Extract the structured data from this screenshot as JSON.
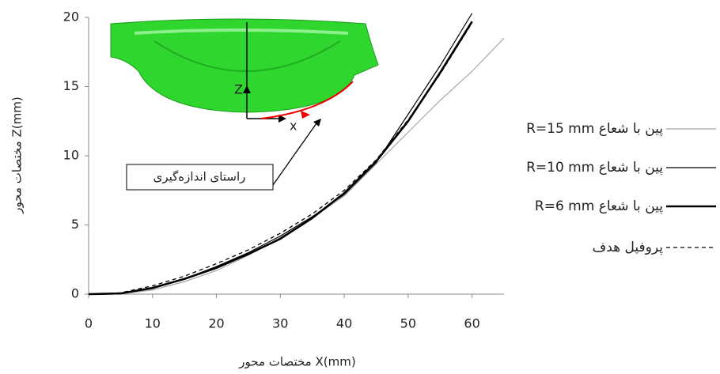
{
  "chart_data": {
    "type": "line",
    "x_label": "مختصات محور X(mm)",
    "y_label": "مختصات محور Z(mm)",
    "x": [
      0,
      5,
      10,
      15,
      20,
      25,
      30,
      35,
      40,
      45,
      50,
      55,
      60,
      65
    ],
    "series": [
      {
        "name": "پین با شعاع R=15 mm",
        "color": "#a6a6a6",
        "width": 1.2,
        "dashed": false,
        "values": [
          0,
          0.02,
          0.3,
          0.9,
          1.7,
          2.8,
          4.1,
          5.5,
          7.1,
          9.4,
          11.7,
          14.0,
          16.1,
          18.5
        ]
      },
      {
        "name": "پین با شعاع R=10 mm",
        "color": "#000000",
        "width": 1.2,
        "dashed": false,
        "values": [
          0,
          0.04,
          0.4,
          1.1,
          2.0,
          3.0,
          4.2,
          5.6,
          7.2,
          9.5,
          13.0,
          16.5,
          20.3,
          null
        ]
      },
      {
        "name": "پین با شعاع R=6 mm",
        "color": "#000000",
        "width": 2.6,
        "dashed": false,
        "values": [
          0,
          0.05,
          0.45,
          1.1,
          1.9,
          2.9,
          4.0,
          5.5,
          7.3,
          9.6,
          12.5,
          16.0,
          19.7,
          null
        ]
      },
      {
        "name": "پروفیل هدف",
        "color": "#000000",
        "width": 1.3,
        "dashed": true,
        "values": [
          0,
          0.1,
          0.6,
          1.3,
          2.2,
          3.2,
          4.4,
          5.8,
          7.5,
          9.7,
          12.6,
          15.9,
          19.6,
          null
        ]
      }
    ],
    "xlim": [
      0,
      65
    ],
    "ylim": [
      0,
      20
    ],
    "xticks": [
      0,
      10,
      20,
      30,
      40,
      50,
      60
    ],
    "yticks": [
      0,
      5,
      10,
      15,
      20
    ],
    "annotations": {
      "inset_z": "Z",
      "inset_x": "x",
      "measure_path": "راستای اندازه‌گیری"
    }
  }
}
